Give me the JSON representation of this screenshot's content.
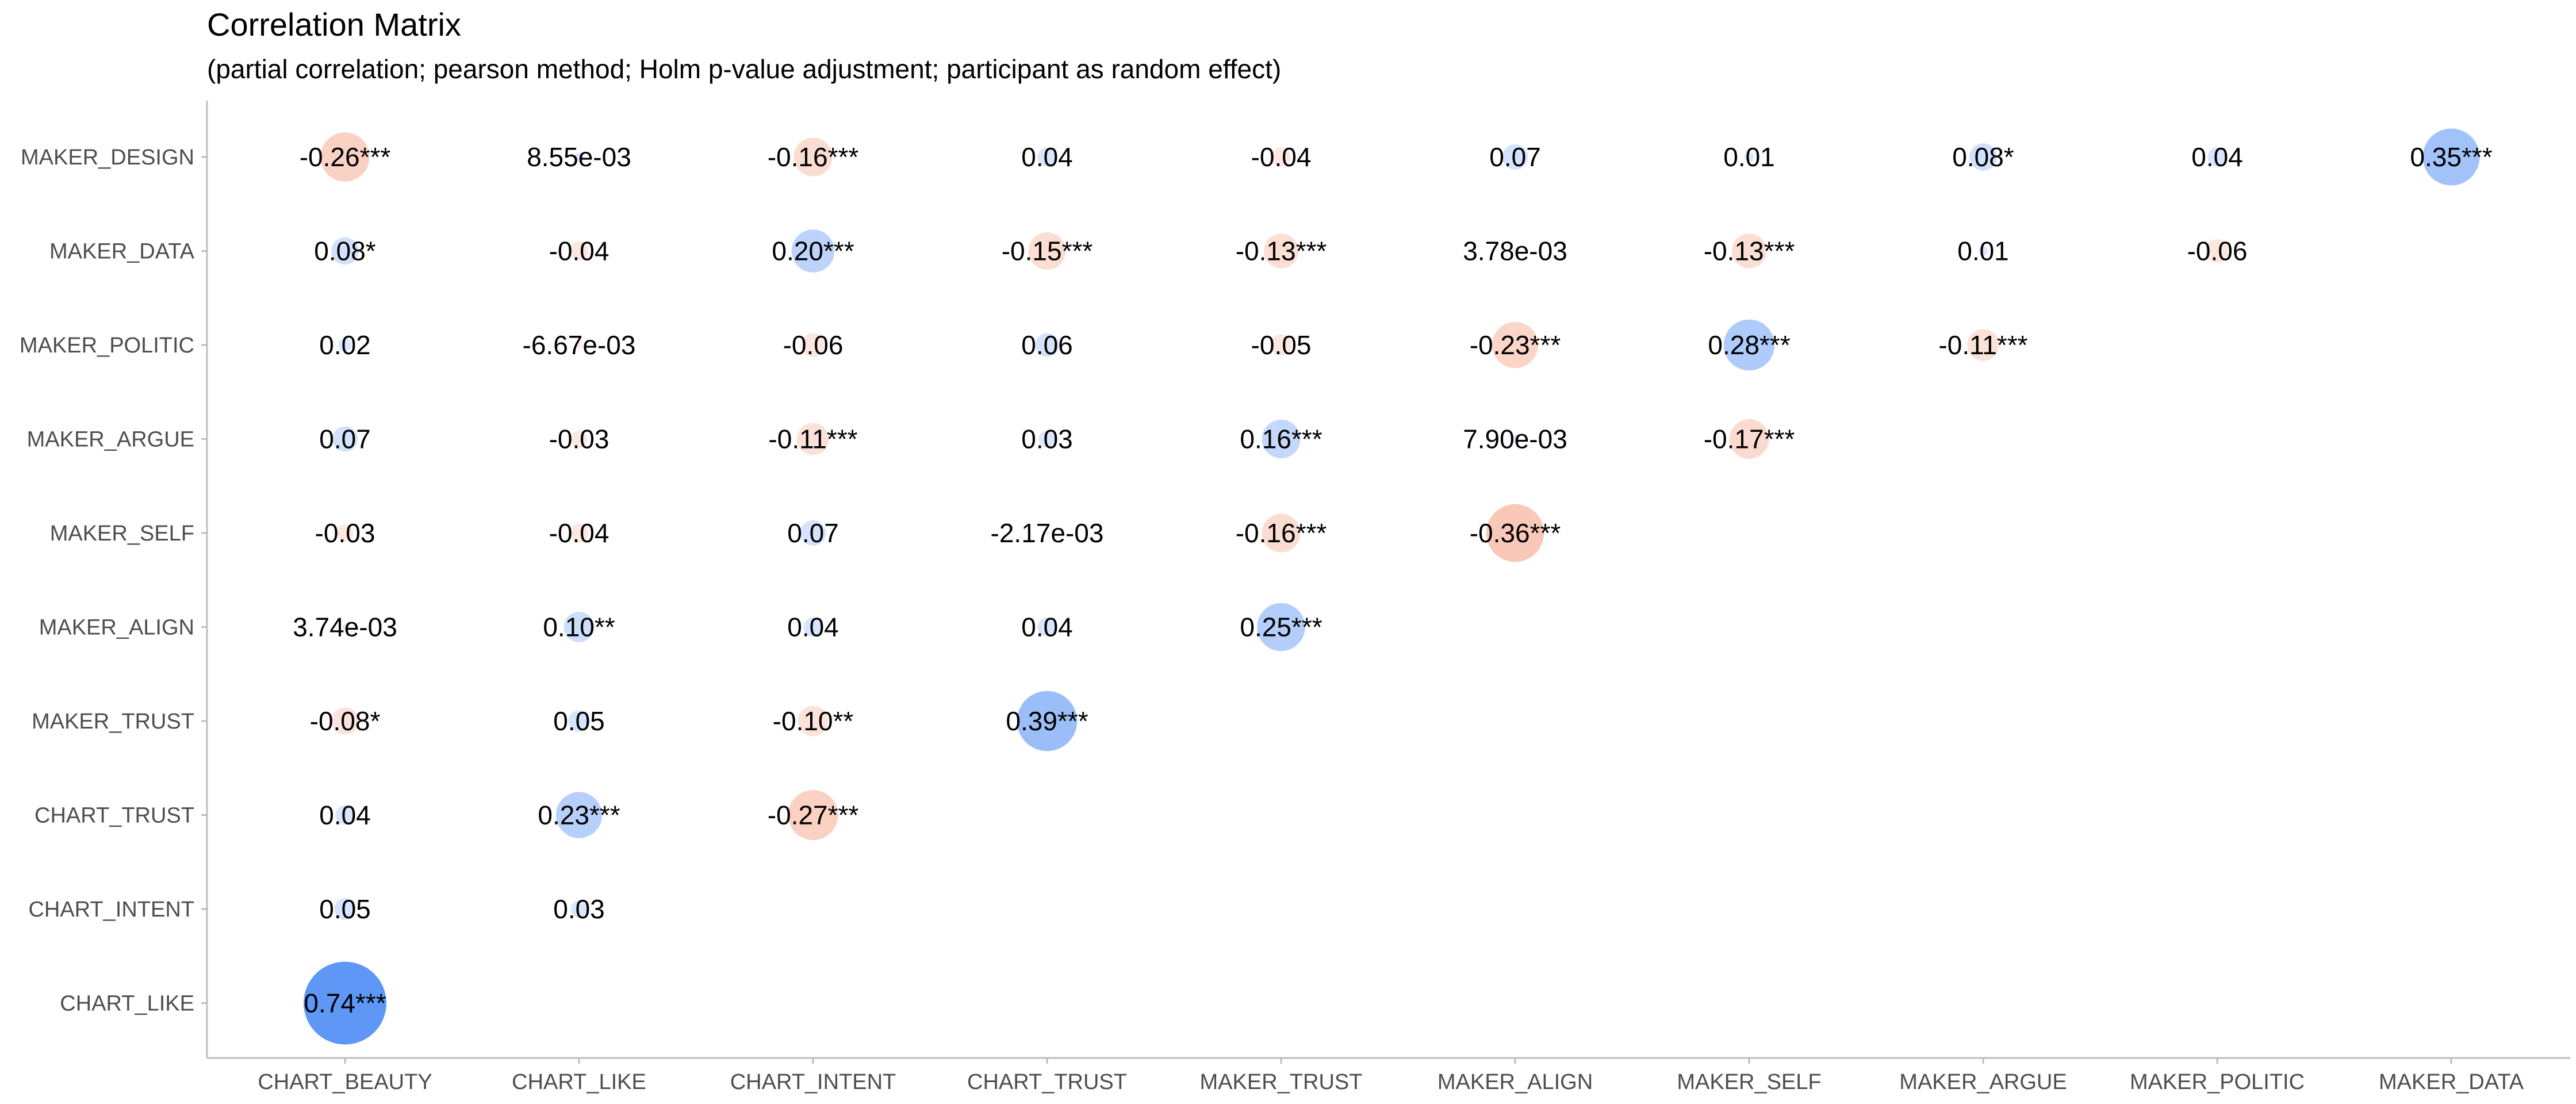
{
  "chart_data": {
    "type": "heatmap",
    "title": "Correlation Matrix",
    "subtitle": "(partial correlation; pearson method; Holm p-value adjustment; participant as random effect)",
    "x_categories": [
      "CHART_BEAUTY",
      "CHART_LIKE",
      "CHART_INTENT",
      "CHART_TRUST",
      "MAKER_TRUST",
      "MAKER_ALIGN",
      "MAKER_SELF",
      "MAKER_ARGUE",
      "MAKER_POLITIC",
      "MAKER_DATA"
    ],
    "y_categories": [
      "MAKER_DESIGN",
      "MAKER_DATA",
      "MAKER_POLITIC",
      "MAKER_ARGUE",
      "MAKER_SELF",
      "MAKER_ALIGN",
      "MAKER_TRUST",
      "CHART_TRUST",
      "CHART_INTENT",
      "CHART_LIKE"
    ],
    "colors": {
      "positive": "#5e97f6",
      "negative": "#f4a284",
      "axis": "#bdbdbd",
      "tick_text": "#4d4d4d",
      "text": "#000000"
    },
    "cells": [
      {
        "x": "CHART_BEAUTY",
        "y": "MAKER_DESIGN",
        "r": -0.26,
        "label": "-0.26***"
      },
      {
        "x": "CHART_LIKE",
        "y": "MAKER_DESIGN",
        "r": 0.00855,
        "label": "8.55e-03"
      },
      {
        "x": "CHART_INTENT",
        "y": "MAKER_DESIGN",
        "r": -0.16,
        "label": "-0.16***"
      },
      {
        "x": "CHART_TRUST",
        "y": "MAKER_DESIGN",
        "r": 0.04,
        "label": "0.04"
      },
      {
        "x": "MAKER_TRUST",
        "y": "MAKER_DESIGN",
        "r": -0.04,
        "label": "-0.04"
      },
      {
        "x": "MAKER_ALIGN",
        "y": "MAKER_DESIGN",
        "r": 0.07,
        "label": "0.07"
      },
      {
        "x": "MAKER_SELF",
        "y": "MAKER_DESIGN",
        "r": 0.01,
        "label": "0.01"
      },
      {
        "x": "MAKER_ARGUE",
        "y": "MAKER_DESIGN",
        "r": 0.08,
        "label": "0.08*"
      },
      {
        "x": "MAKER_POLITIC",
        "y": "MAKER_DESIGN",
        "r": 0.04,
        "label": "0.04"
      },
      {
        "x": "MAKER_DATA",
        "y": "MAKER_DESIGN",
        "r": 0.35,
        "label": "0.35***"
      },
      {
        "x": "CHART_BEAUTY",
        "y": "MAKER_DATA",
        "r": 0.08,
        "label": "0.08*"
      },
      {
        "x": "CHART_LIKE",
        "y": "MAKER_DATA",
        "r": -0.04,
        "label": "-0.04"
      },
      {
        "x": "CHART_INTENT",
        "y": "MAKER_DATA",
        "r": 0.2,
        "label": "0.20***"
      },
      {
        "x": "CHART_TRUST",
        "y": "MAKER_DATA",
        "r": -0.15,
        "label": "-0.15***"
      },
      {
        "x": "MAKER_TRUST",
        "y": "MAKER_DATA",
        "r": -0.13,
        "label": "-0.13***"
      },
      {
        "x": "MAKER_ALIGN",
        "y": "MAKER_DATA",
        "r": 0.00378,
        "label": "3.78e-03"
      },
      {
        "x": "MAKER_SELF",
        "y": "MAKER_DATA",
        "r": -0.13,
        "label": "-0.13***"
      },
      {
        "x": "MAKER_ARGUE",
        "y": "MAKER_DATA",
        "r": 0.01,
        "label": "0.01"
      },
      {
        "x": "MAKER_POLITIC",
        "y": "MAKER_DATA",
        "r": -0.06,
        "label": "-0.06"
      },
      {
        "x": "CHART_BEAUTY",
        "y": "MAKER_POLITIC",
        "r": 0.02,
        "label": "0.02"
      },
      {
        "x": "CHART_LIKE",
        "y": "MAKER_POLITIC",
        "r": -0.00667,
        "label": "-6.67e-03"
      },
      {
        "x": "CHART_INTENT",
        "y": "MAKER_POLITIC",
        "r": -0.06,
        "label": "-0.06"
      },
      {
        "x": "CHART_TRUST",
        "y": "MAKER_POLITIC",
        "r": 0.06,
        "label": "0.06"
      },
      {
        "x": "MAKER_TRUST",
        "y": "MAKER_POLITIC",
        "r": -0.05,
        "label": "-0.05"
      },
      {
        "x": "MAKER_ALIGN",
        "y": "MAKER_POLITIC",
        "r": -0.23,
        "label": "-0.23***"
      },
      {
        "x": "MAKER_SELF",
        "y": "MAKER_POLITIC",
        "r": 0.28,
        "label": "0.28***"
      },
      {
        "x": "MAKER_ARGUE",
        "y": "MAKER_POLITIC",
        "r": -0.11,
        "label": "-0.11***"
      },
      {
        "x": "CHART_BEAUTY",
        "y": "MAKER_ARGUE",
        "r": 0.07,
        "label": "0.07"
      },
      {
        "x": "CHART_LIKE",
        "y": "MAKER_ARGUE",
        "r": -0.03,
        "label": "-0.03"
      },
      {
        "x": "CHART_INTENT",
        "y": "MAKER_ARGUE",
        "r": -0.11,
        "label": "-0.11***"
      },
      {
        "x": "CHART_TRUST",
        "y": "MAKER_ARGUE",
        "r": 0.03,
        "label": "0.03"
      },
      {
        "x": "MAKER_TRUST",
        "y": "MAKER_ARGUE",
        "r": 0.16,
        "label": "0.16***"
      },
      {
        "x": "MAKER_ALIGN",
        "y": "MAKER_ARGUE",
        "r": 0.0079,
        "label": "7.90e-03"
      },
      {
        "x": "MAKER_SELF",
        "y": "MAKER_ARGUE",
        "r": -0.17,
        "label": "-0.17***"
      },
      {
        "x": "CHART_BEAUTY",
        "y": "MAKER_SELF",
        "r": -0.03,
        "label": "-0.03"
      },
      {
        "x": "CHART_LIKE",
        "y": "MAKER_SELF",
        "r": -0.04,
        "label": "-0.04"
      },
      {
        "x": "CHART_INTENT",
        "y": "MAKER_SELF",
        "r": 0.07,
        "label": "0.07"
      },
      {
        "x": "CHART_TRUST",
        "y": "MAKER_SELF",
        "r": -0.00217,
        "label": "-2.17e-03"
      },
      {
        "x": "MAKER_TRUST",
        "y": "MAKER_SELF",
        "r": -0.16,
        "label": "-0.16***"
      },
      {
        "x": "MAKER_ALIGN",
        "y": "MAKER_SELF",
        "r": -0.36,
        "label": "-0.36***"
      },
      {
        "x": "CHART_BEAUTY",
        "y": "MAKER_ALIGN",
        "r": 0.00374,
        "label": "3.74e-03"
      },
      {
        "x": "CHART_LIKE",
        "y": "MAKER_ALIGN",
        "r": 0.1,
        "label": "0.10**"
      },
      {
        "x": "CHART_INTENT",
        "y": "MAKER_ALIGN",
        "r": 0.04,
        "label": "0.04"
      },
      {
        "x": "CHART_TRUST",
        "y": "MAKER_ALIGN",
        "r": 0.04,
        "label": "0.04"
      },
      {
        "x": "MAKER_TRUST",
        "y": "MAKER_ALIGN",
        "r": 0.25,
        "label": "0.25***"
      },
      {
        "x": "CHART_BEAUTY",
        "y": "MAKER_TRUST",
        "r": -0.08,
        "label": "-0.08*"
      },
      {
        "x": "CHART_LIKE",
        "y": "MAKER_TRUST",
        "r": 0.05,
        "label": "0.05"
      },
      {
        "x": "CHART_INTENT",
        "y": "MAKER_TRUST",
        "r": -0.1,
        "label": "-0.10**"
      },
      {
        "x": "CHART_TRUST",
        "y": "MAKER_TRUST",
        "r": 0.39,
        "label": "0.39***"
      },
      {
        "x": "CHART_BEAUTY",
        "y": "CHART_TRUST",
        "r": 0.04,
        "label": "0.04"
      },
      {
        "x": "CHART_LIKE",
        "y": "CHART_TRUST",
        "r": 0.23,
        "label": "0.23***"
      },
      {
        "x": "CHART_INTENT",
        "y": "CHART_TRUST",
        "r": -0.27,
        "label": "-0.27***"
      },
      {
        "x": "CHART_BEAUTY",
        "y": "CHART_INTENT",
        "r": 0.05,
        "label": "0.05"
      },
      {
        "x": "CHART_LIKE",
        "y": "CHART_INTENT",
        "r": 0.03,
        "label": "0.03"
      },
      {
        "x": "CHART_BEAUTY",
        "y": "CHART_LIKE",
        "r": 0.74,
        "label": "0.74***"
      }
    ]
  }
}
